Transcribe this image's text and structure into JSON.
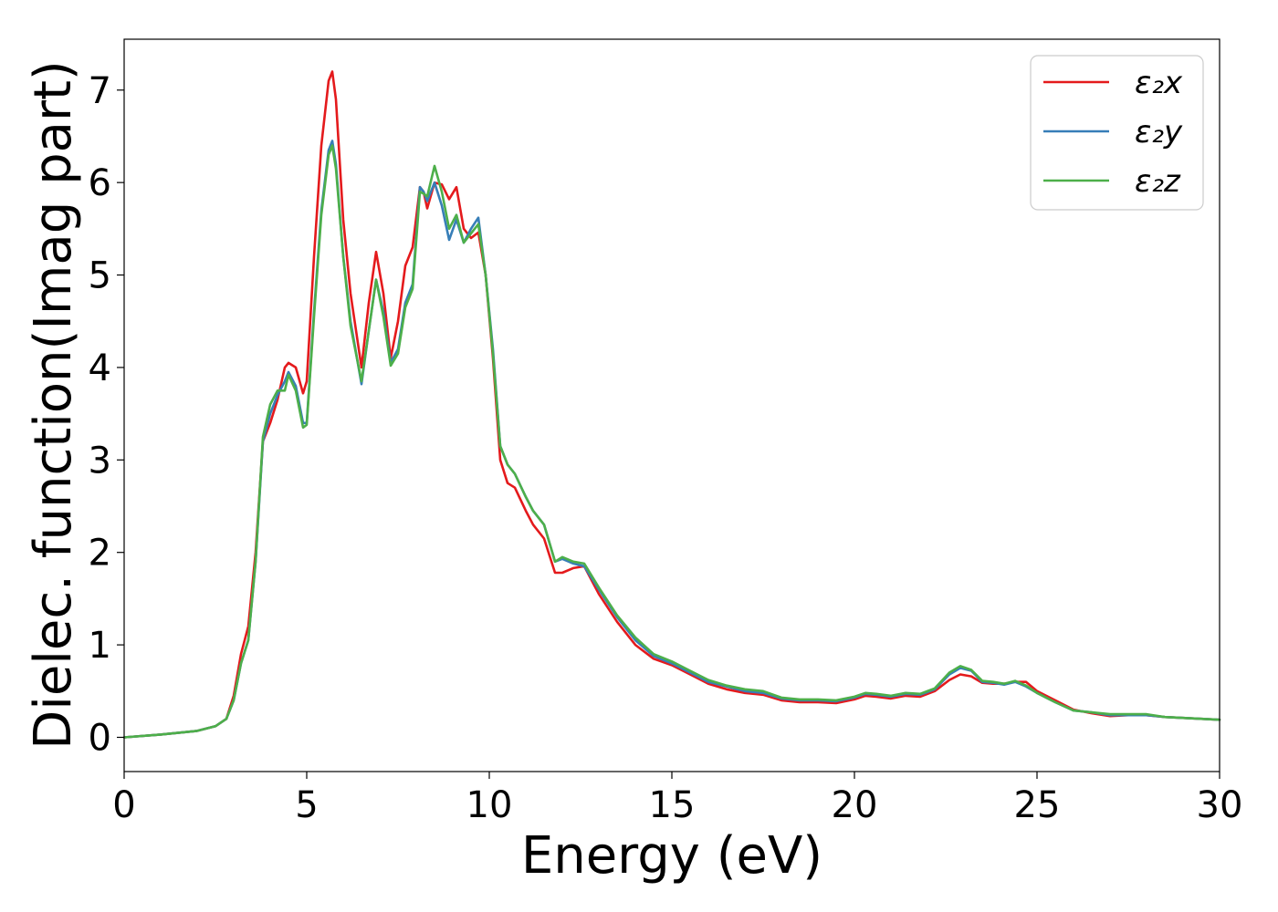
{
  "chart_data": {
    "type": "line",
    "title": "",
    "xlabel": "Energy (eV)",
    "ylabel": "Dielec. function(Imag part)",
    "xlim": [
      0,
      30
    ],
    "ylim": [
      -0.37,
      7.55
    ],
    "xticks": [
      0,
      5,
      10,
      15,
      20,
      25,
      30
    ],
    "yticks": [
      0,
      1,
      2,
      3,
      4,
      5,
      6,
      7
    ],
    "grid": false,
    "legend_position": "top-right",
    "series": [
      {
        "name": "ε₂x",
        "color": "#e41a1c",
        "x": [
          0,
          1,
          2,
          2.5,
          2.8,
          3.0,
          3.2,
          3.4,
          3.6,
          3.8,
          4.0,
          4.2,
          4.4,
          4.5,
          4.7,
          4.9,
          5.0,
          5.2,
          5.4,
          5.6,
          5.7,
          5.8,
          6.0,
          6.2,
          6.5,
          6.7,
          6.9,
          7.1,
          7.3,
          7.5,
          7.7,
          7.9,
          8.1,
          8.2,
          8.3,
          8.5,
          8.7,
          8.9,
          9.1,
          9.3,
          9.5,
          9.7,
          9.9,
          10.1,
          10.3,
          10.5,
          10.7,
          11.0,
          11.2,
          11.5,
          11.8,
          12.0,
          12.3,
          12.6,
          13.0,
          13.5,
          14.0,
          14.5,
          15.0,
          15.5,
          16.0,
          16.5,
          17.0,
          17.5,
          18.0,
          18.5,
          19.0,
          19.5,
          20.0,
          20.3,
          20.6,
          21.0,
          21.4,
          21.8,
          22.2,
          22.6,
          22.9,
          23.2,
          23.5,
          23.8,
          24.1,
          24.4,
          24.7,
          25.0,
          25.5,
          26.0,
          26.5,
          27.0,
          27.5,
          28.0,
          28.5,
          29.0,
          30.0
        ],
        "y": [
          0.0,
          0.03,
          0.07,
          0.12,
          0.2,
          0.45,
          0.9,
          1.2,
          2.0,
          3.2,
          3.4,
          3.65,
          4.0,
          4.05,
          4.0,
          3.72,
          3.85,
          5.2,
          6.4,
          7.1,
          7.2,
          6.9,
          5.6,
          4.8,
          4.0,
          4.7,
          5.25,
          4.8,
          4.1,
          4.5,
          5.1,
          5.3,
          5.95,
          5.9,
          5.72,
          6.0,
          5.98,
          5.82,
          5.95,
          5.5,
          5.4,
          5.46,
          5.0,
          4.1,
          3.0,
          2.75,
          2.7,
          2.45,
          2.3,
          2.15,
          1.78,
          1.78,
          1.83,
          1.85,
          1.55,
          1.25,
          1.0,
          0.85,
          0.78,
          0.68,
          0.58,
          0.52,
          0.48,
          0.46,
          0.4,
          0.38,
          0.38,
          0.37,
          0.41,
          0.45,
          0.44,
          0.42,
          0.45,
          0.44,
          0.5,
          0.62,
          0.68,
          0.66,
          0.59,
          0.58,
          0.58,
          0.6,
          0.6,
          0.5,
          0.4,
          0.3,
          0.26,
          0.23,
          0.24,
          0.24,
          0.22,
          0.21,
          0.19
        ]
      },
      {
        "name": "ε₂y",
        "color": "#377eb8",
        "x": [
          0,
          1,
          2,
          2.5,
          2.8,
          3.0,
          3.2,
          3.4,
          3.6,
          3.8,
          4.0,
          4.2,
          4.4,
          4.5,
          4.7,
          4.9,
          5.0,
          5.2,
          5.4,
          5.6,
          5.7,
          5.8,
          6.0,
          6.2,
          6.5,
          6.7,
          6.9,
          7.1,
          7.3,
          7.5,
          7.7,
          7.9,
          8.1,
          8.2,
          8.3,
          8.5,
          8.7,
          8.9,
          9.1,
          9.3,
          9.5,
          9.7,
          9.9,
          10.1,
          10.3,
          10.5,
          10.7,
          11.0,
          11.2,
          11.5,
          11.8,
          12.0,
          12.3,
          12.6,
          13.0,
          13.5,
          14.0,
          14.5,
          15.0,
          15.5,
          16.0,
          16.5,
          17.0,
          17.5,
          18.0,
          18.5,
          19.0,
          19.5,
          20.0,
          20.3,
          20.6,
          21.0,
          21.4,
          21.8,
          22.2,
          22.6,
          22.9,
          23.2,
          23.5,
          23.8,
          24.1,
          24.4,
          24.7,
          25.0,
          25.5,
          26.0,
          26.5,
          27.0,
          27.5,
          28.0,
          28.5,
          29.0,
          30.0
        ],
        "y": [
          0.0,
          0.03,
          0.07,
          0.12,
          0.2,
          0.4,
          0.8,
          1.05,
          1.9,
          3.2,
          3.5,
          3.7,
          3.85,
          3.95,
          3.8,
          3.4,
          3.4,
          4.6,
          5.7,
          6.35,
          6.45,
          6.2,
          5.2,
          4.5,
          3.82,
          4.4,
          4.95,
          4.6,
          4.05,
          4.2,
          4.7,
          4.9,
          5.95,
          5.9,
          5.8,
          6.0,
          5.75,
          5.38,
          5.6,
          5.35,
          5.5,
          5.62,
          5.0,
          4.2,
          3.15,
          2.95,
          2.85,
          2.6,
          2.45,
          2.3,
          1.9,
          1.93,
          1.88,
          1.85,
          1.6,
          1.3,
          1.05,
          0.88,
          0.8,
          0.7,
          0.6,
          0.55,
          0.5,
          0.48,
          0.42,
          0.4,
          0.4,
          0.39,
          0.43,
          0.47,
          0.46,
          0.44,
          0.47,
          0.46,
          0.52,
          0.68,
          0.75,
          0.72,
          0.6,
          0.59,
          0.57,
          0.6,
          0.55,
          0.48,
          0.38,
          0.29,
          0.27,
          0.24,
          0.24,
          0.24,
          0.22,
          0.21,
          0.19
        ]
      },
      {
        "name": "ε₂z",
        "color": "#4daf4a",
        "x": [
          0,
          1,
          2,
          2.5,
          2.8,
          3.0,
          3.2,
          3.4,
          3.6,
          3.8,
          4.0,
          4.2,
          4.4,
          4.5,
          4.7,
          4.9,
          5.0,
          5.2,
          5.4,
          5.6,
          5.7,
          5.8,
          6.0,
          6.2,
          6.5,
          6.7,
          6.9,
          7.1,
          7.3,
          7.5,
          7.7,
          7.9,
          8.1,
          8.2,
          8.3,
          8.5,
          8.7,
          8.9,
          9.1,
          9.3,
          9.5,
          9.7,
          9.9,
          10.1,
          10.3,
          10.5,
          10.7,
          11.0,
          11.2,
          11.5,
          11.8,
          12.0,
          12.3,
          12.6,
          13.0,
          13.5,
          14.0,
          14.5,
          15.0,
          15.5,
          16.0,
          16.5,
          17.0,
          17.5,
          18.0,
          18.5,
          19.0,
          19.5,
          20.0,
          20.3,
          20.6,
          21.0,
          21.4,
          21.8,
          22.2,
          22.6,
          22.9,
          23.2,
          23.5,
          23.8,
          24.1,
          24.4,
          24.7,
          25.0,
          25.5,
          26.0,
          26.5,
          27.0,
          27.5,
          28.0,
          28.5,
          29.0,
          30.0
        ],
        "y": [
          0.0,
          0.03,
          0.07,
          0.12,
          0.2,
          0.4,
          0.8,
          1.05,
          1.9,
          3.25,
          3.6,
          3.75,
          3.75,
          3.92,
          3.75,
          3.35,
          3.38,
          4.55,
          5.65,
          6.3,
          6.4,
          6.15,
          5.2,
          4.45,
          3.85,
          4.4,
          4.95,
          4.55,
          4.02,
          4.15,
          4.65,
          4.85,
          5.9,
          5.88,
          5.85,
          6.18,
          5.9,
          5.5,
          5.65,
          5.35,
          5.45,
          5.55,
          5.0,
          4.15,
          3.15,
          2.95,
          2.85,
          2.6,
          2.45,
          2.3,
          1.9,
          1.95,
          1.9,
          1.88,
          1.62,
          1.32,
          1.08,
          0.9,
          0.82,
          0.72,
          0.62,
          0.56,
          0.52,
          0.5,
          0.43,
          0.41,
          0.41,
          0.4,
          0.44,
          0.48,
          0.47,
          0.45,
          0.48,
          0.47,
          0.53,
          0.7,
          0.77,
          0.73,
          0.61,
          0.6,
          0.58,
          0.61,
          0.56,
          0.48,
          0.38,
          0.29,
          0.27,
          0.25,
          0.25,
          0.25,
          0.22,
          0.21,
          0.19
        ]
      }
    ]
  }
}
